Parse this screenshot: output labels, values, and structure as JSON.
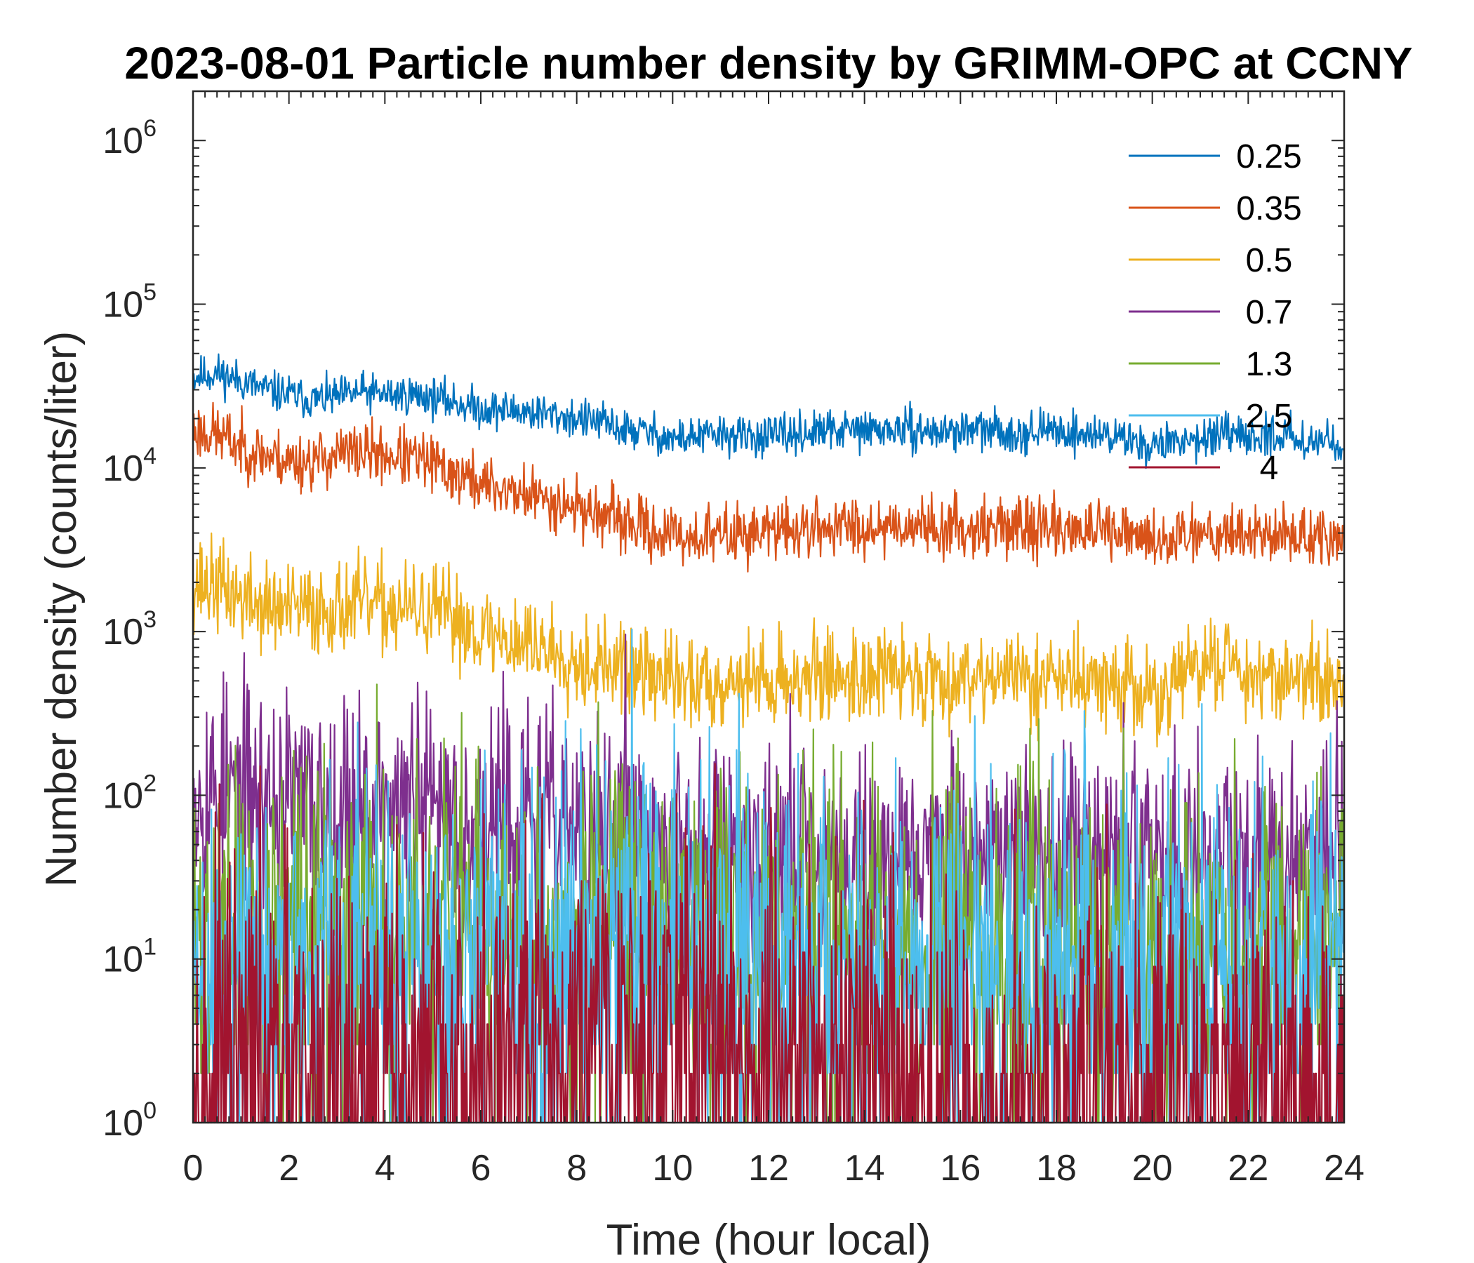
{
  "chart_data": {
    "type": "line",
    "title": "2023-08-01 Particle number density by GRIMM-OPC at CCNY",
    "xlabel": "Time (hour local)",
    "ylabel": "Number density (counts/liter)",
    "xlim": [
      0,
      24
    ],
    "ylim": [
      1,
      2000000
    ],
    "yscale": "log",
    "x_ticks": [
      "0",
      "2",
      "4",
      "6",
      "8",
      "10",
      "12",
      "14",
      "16",
      "18",
      "20",
      "22",
      "24"
    ],
    "y_ticks": [
      {
        "base": "10",
        "exp": "0"
      },
      {
        "base": "10",
        "exp": "1"
      },
      {
        "base": "10",
        "exp": "2"
      },
      {
        "base": "10",
        "exp": "3"
      },
      {
        "base": "10",
        "exp": "4"
      },
      {
        "base": "10",
        "exp": "5"
      },
      {
        "base": "10",
        "exp": "6"
      }
    ],
    "legend_position": "top-right",
    "series": [
      {
        "name": "0.25",
        "color": "#0072BD",
        "x": [
          0,
          0.5,
          1,
          1.5,
          2,
          2.5,
          3,
          3.5,
          4,
          4.5,
          5,
          5.5,
          6,
          6.5,
          7,
          7.5,
          8,
          8.5,
          9,
          9.5,
          10,
          10.5,
          11,
          11.5,
          12,
          12.5,
          13,
          13.5,
          14,
          14.5,
          15,
          15.5,
          16,
          16.5,
          17,
          17.5,
          18,
          18.5,
          19,
          19.5,
          20,
          20.5,
          21,
          21.5,
          22,
          22.5,
          23,
          23.5,
          24
        ],
        "values": [
          36000,
          38000,
          34000,
          30000,
          28000,
          26000,
          27000,
          29000,
          28000,
          28000,
          27000,
          25000,
          23000,
          22500,
          22000,
          21000,
          20000,
          19000,
          17000,
          16500,
          15000,
          15500,
          16000,
          15500,
          15500,
          16000,
          16500,
          17000,
          17000,
          17000,
          17000,
          16500,
          17000,
          17000,
          16500,
          16500,
          17000,
          16000,
          16000,
          15000,
          13500,
          14500,
          15500,
          15500,
          15000,
          16000,
          15500,
          14500,
          14500
        ],
        "noise": 0.06,
        "seed": 11
      },
      {
        "name": "0.35",
        "color": "#D95319",
        "x": [
          0,
          0.5,
          1,
          1.5,
          2,
          2.5,
          3,
          3.5,
          4,
          4.5,
          5,
          5.5,
          6,
          6.5,
          7,
          7.5,
          8,
          8.5,
          9,
          9.5,
          10,
          10.5,
          11,
          11.5,
          12,
          12.5,
          13,
          13.5,
          14,
          14.5,
          15,
          15.5,
          16,
          16.5,
          17,
          17.5,
          18,
          18.5,
          19,
          19.5,
          20,
          20.5,
          21,
          21.5,
          22,
          22.5,
          23,
          23.5,
          24
        ],
        "values": [
          17000,
          16000,
          13500,
          12000,
          11000,
          11000,
          12000,
          12500,
          12000,
          11500,
          10500,
          9000,
          8000,
          7300,
          6800,
          6300,
          5800,
          5200,
          4600,
          4200,
          3800,
          3800,
          3900,
          4000,
          4100,
          4200,
          4300,
          4400,
          4400,
          4500,
          4500,
          4300,
          4300,
          4400,
          4400,
          4300,
          4300,
          4200,
          4000,
          3800,
          3600,
          3800,
          4200,
          4100,
          4000,
          3900,
          3900,
          3700,
          3400
        ],
        "noise": 0.09,
        "seed": 23
      },
      {
        "name": "0.5",
        "color": "#EDB120",
        "x": [
          0,
          0.5,
          1,
          1.5,
          2,
          2.5,
          3,
          3.5,
          4,
          4.5,
          5,
          5.5,
          6,
          6.5,
          7,
          7.5,
          8,
          8.5,
          9,
          9.5,
          10,
          10.5,
          11,
          11.5,
          12,
          12.5,
          13,
          13.5,
          14,
          14.5,
          15,
          15.5,
          16,
          16.5,
          17,
          17.5,
          18,
          18.5,
          19,
          19.5,
          20,
          20.5,
          21,
          21.5,
          22,
          22.5,
          23,
          23.5,
          24
        ],
        "values": [
          2000,
          1900,
          1600,
          1400,
          1350,
          1350,
          1400,
          1450,
          1400,
          1350,
          1300,
          1200,
          1000,
          900,
          850,
          780,
          680,
          620,
          580,
          560,
          500,
          480,
          500,
          520,
          500,
          520,
          530,
          540,
          540,
          560,
          540,
          530,
          520,
          580,
          520,
          520,
          540,
          500,
          480,
          470,
          380,
          500,
          600,
          700,
          560,
          560,
          520,
          500,
          480
        ],
        "noise": 0.14,
        "seed": 37
      },
      {
        "name": "0.7",
        "color": "#7E2F8E",
        "x": [
          0,
          1,
          2,
          3,
          4,
          5,
          6,
          7,
          8,
          9,
          10,
          11,
          12,
          13,
          14,
          15,
          16,
          17,
          18,
          19,
          20,
          21,
          22,
          23,
          24
        ],
        "values": [
          110,
          100,
          90,
          85,
          85,
          80,
          75,
          70,
          60,
          55,
          50,
          50,
          48,
          46,
          45,
          45,
          45,
          44,
          43,
          42,
          40,
          48,
          45,
          43,
          42
        ],
        "noise": 0.35,
        "seed": 53
      },
      {
        "name": "1.3",
        "color": "#77AC30",
        "x": [
          0,
          2,
          4,
          6,
          8,
          10,
          12,
          14,
          16,
          18,
          20,
          22,
          24
        ],
        "values": [
          12,
          13,
          13,
          14,
          15,
          13,
          12,
          12,
          11,
          11,
          10,
          10,
          10
        ],
        "noise": 0.55,
        "seed": 71
      },
      {
        "name": "2.5",
        "color": "#4DBEEE",
        "x": [
          0,
          2,
          4,
          6,
          8,
          10,
          12,
          14,
          16,
          18,
          20,
          22,
          24
        ],
        "values": [
          7,
          8,
          8,
          9,
          9,
          9,
          9,
          8,
          8,
          8,
          7,
          7,
          7
        ],
        "noise": 0.6,
        "seed": 89
      },
      {
        "name": "4",
        "color": "#A2142F",
        "x": [
          0,
          2,
          4,
          6,
          8,
          10,
          12,
          14,
          16,
          18,
          20,
          22,
          24
        ],
        "values": [
          1.6,
          1.6,
          1.6,
          1.9,
          2.5,
          3,
          2.8,
          1.6,
          1.4,
          1.4,
          1.3,
          1.4,
          1.3
        ],
        "noise": 0.7,
        "seed": 97
      }
    ]
  }
}
